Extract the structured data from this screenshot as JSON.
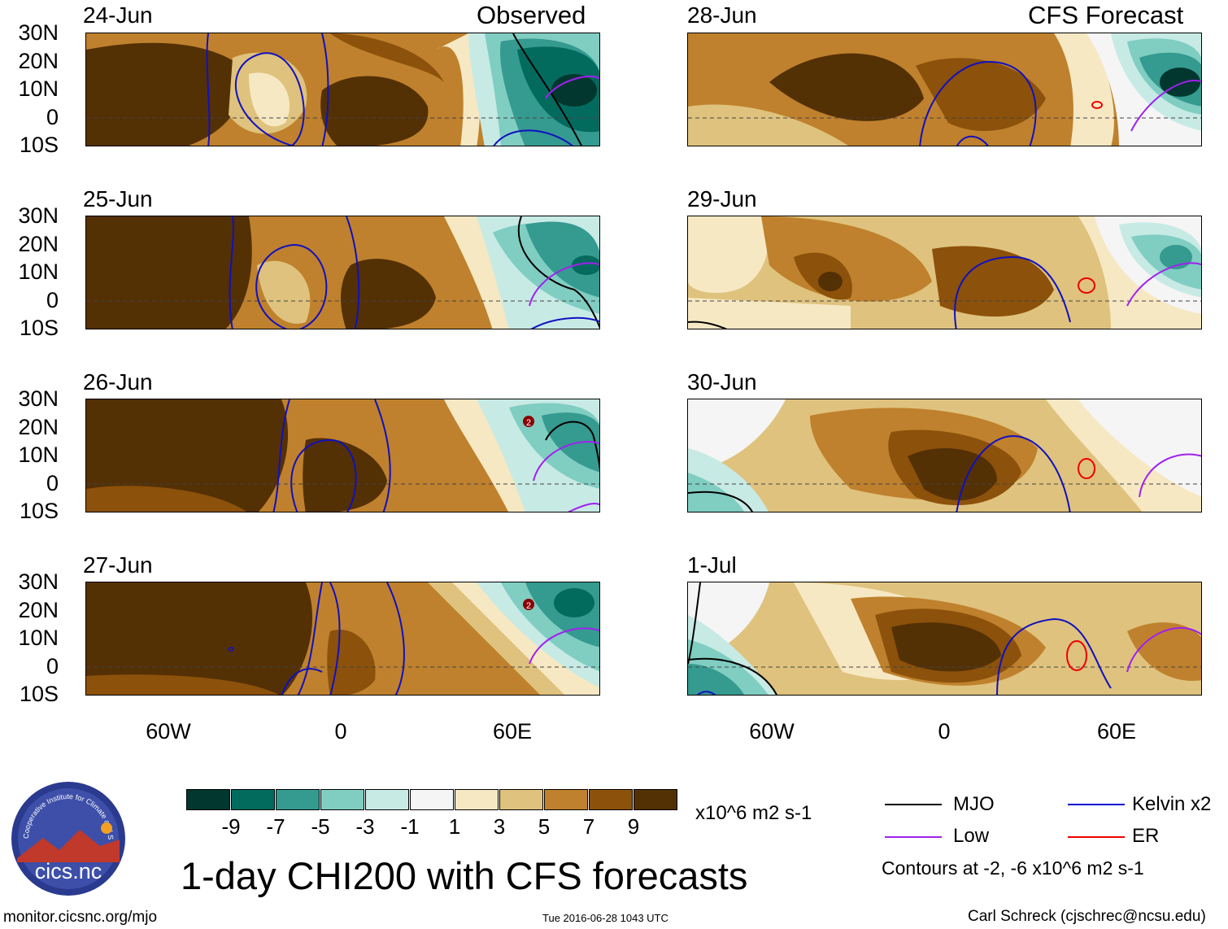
{
  "header": {
    "left_label": "Observed",
    "right_label": "CFS Forecast"
  },
  "panels": {
    "observed": [
      {
        "date": "24-Jun"
      },
      {
        "date": "25-Jun"
      },
      {
        "date": "26-Jun"
      },
      {
        "date": "27-Jun"
      }
    ],
    "forecast": [
      {
        "date": "28-Jun"
      },
      {
        "date": "29-Jun"
      },
      {
        "date": "30-Jun"
      },
      {
        "date": "1-Jul"
      }
    ]
  },
  "axes": {
    "lat_labels": [
      "30N",
      "20N",
      "10N",
      "0",
      "10S"
    ],
    "lon_labels": [
      "60W",
      "0",
      "60E"
    ]
  },
  "markers": {
    "storm_label": "2"
  },
  "colorbar": {
    "labels": [
      "-9",
      "-7",
      "-5",
      "-3",
      "-1",
      "1",
      "3",
      "5",
      "7",
      "9"
    ],
    "colors": [
      "#01372f",
      "#036a5e",
      "#359a8f",
      "#80cdc2",
      "#c7eae5",
      "#f5f5f5",
      "#f6e8c3",
      "#dfc27d",
      "#bf812d",
      "#8c510a",
      "#543005"
    ],
    "units": "x10^6 m2 s-1"
  },
  "legend": {
    "items": [
      {
        "label": "MJO",
        "color": "#000000"
      },
      {
        "label": "Kelvin x2",
        "color": "#0000cc"
      },
      {
        "label": "Low",
        "color": "#a020f0"
      },
      {
        "label": "ER",
        "color": "#ee0000"
      }
    ],
    "contours_note": "Contours at -2, -6 x10^6 m2 s-1"
  },
  "title": "1-day CHI200 with CFS forecasts",
  "logo": {
    "text": "cics.nc",
    "ring_text": "Cooperative Institute for Climate and Satellites"
  },
  "footer": {
    "url": "monitor.cicsnc.org/mjo",
    "timestamp": "Tue 2016-06-28 1043 UTC",
    "credit": "Carl Schreck (cjschrec@ncsu.edu)"
  }
}
